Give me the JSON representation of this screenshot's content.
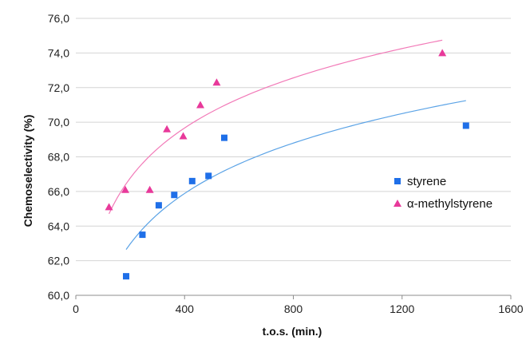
{
  "chart_data": {
    "type": "scatter",
    "xlabel": "t.o.s. (min.)",
    "ylabel": "Chemoselectivity (%)",
    "xlim": [
      0,
      1600
    ],
    "ylim": [
      60,
      76
    ],
    "x_ticks": [
      "0",
      "400",
      "800",
      "1200",
      "1600"
    ],
    "y_ticks": [
      "60,0",
      "62,0",
      "64,0",
      "66,0",
      "68,0",
      "70,0",
      "72,0",
      "74,0",
      "76,0"
    ],
    "grid": "horizontal",
    "legend_position": "right",
    "series": [
      {
        "name": "styrene",
        "marker": "square",
        "color": "#1f6fe8",
        "trend_color": "#5ba3e6",
        "points": [
          [
            185,
            61.1
          ],
          [
            245,
            63.5
          ],
          [
            305,
            65.2
          ],
          [
            362,
            65.8
          ],
          [
            428,
            66.6
          ],
          [
            488,
            66.9
          ],
          [
            546,
            69.1
          ],
          [
            1435,
            69.8
          ]
        ],
        "trend_x_range": [
          185,
          1435
        ]
      },
      {
        "name": "α-methylstyrene",
        "marker": "triangle",
        "color": "#e8399a",
        "trend_color": "#f27ab8",
        "points": [
          [
            122,
            65.1
          ],
          [
            182,
            66.1
          ],
          [
            272,
            66.1
          ],
          [
            335,
            69.6
          ],
          [
            395,
            69.2
          ],
          [
            458,
            71.0
          ],
          [
            518,
            72.3
          ],
          [
            1348,
            74.0
          ]
        ],
        "trend_x_range": [
          122,
          1348
        ]
      }
    ]
  }
}
